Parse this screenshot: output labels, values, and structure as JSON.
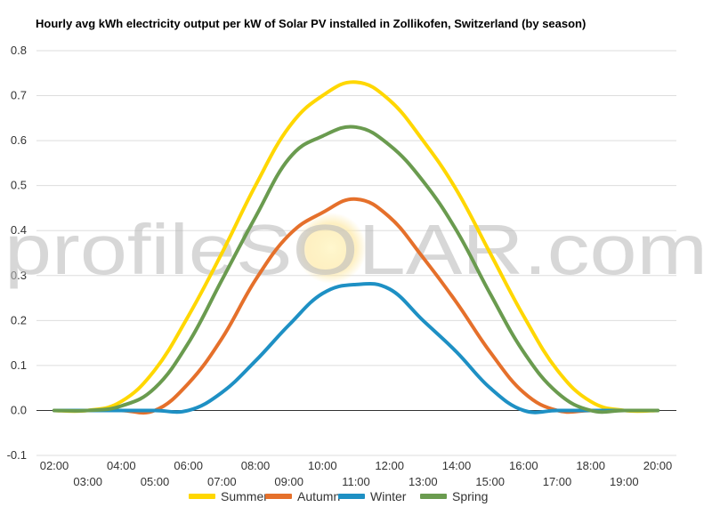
{
  "chart_data": {
    "type": "line",
    "title": "Hourly avg kWh electricity output per kW of Solar PV installed in Zollikofen, Switzerland (by season)",
    "xlabel": "",
    "ylabel": "",
    "ylim": [
      -0.1,
      0.8
    ],
    "yticks": [
      "-0.1",
      "0.0",
      "0.1",
      "0.2",
      "0.3",
      "0.4",
      "0.5",
      "0.6",
      "0.7",
      "0.8"
    ],
    "categories": [
      "02:00",
      "03:00",
      "04:00",
      "05:00",
      "06:00",
      "07:00",
      "08:00",
      "09:00",
      "10:00",
      "11:00",
      "12:00",
      "13:00",
      "14:00",
      "15:00",
      "16:00",
      "17:00",
      "18:00",
      "19:00",
      "20:00"
    ],
    "grid": true,
    "legend": "bottom",
    "series": [
      {
        "name": "Summer",
        "color": "#ffd700",
        "values": [
          0.0,
          0.0,
          0.02,
          0.09,
          0.21,
          0.35,
          0.5,
          0.63,
          0.7,
          0.73,
          0.69,
          0.6,
          0.49,
          0.35,
          0.21,
          0.09,
          0.02,
          0.0,
          0.0
        ]
      },
      {
        "name": "Autumn",
        "color": "#e5702b",
        "values": [
          0.0,
          0.0,
          0.0,
          0.0,
          0.06,
          0.16,
          0.29,
          0.39,
          0.44,
          0.47,
          0.43,
          0.34,
          0.24,
          0.13,
          0.04,
          0.0,
          0.0,
          0.0,
          0.0
        ]
      },
      {
        "name": "Winter",
        "color": "#1e90c4",
        "values": [
          0.0,
          0.0,
          0.0,
          0.0,
          0.0,
          0.04,
          0.11,
          0.19,
          0.26,
          0.28,
          0.27,
          0.2,
          0.13,
          0.05,
          0.0,
          0.0,
          0.0,
          0.0,
          0.0
        ]
      },
      {
        "name": "Spring",
        "color": "#6a9b4f",
        "values": [
          0.0,
          0.0,
          0.01,
          0.05,
          0.15,
          0.29,
          0.43,
          0.56,
          0.61,
          0.63,
          0.59,
          0.51,
          0.4,
          0.26,
          0.13,
          0.04,
          0.0,
          0.0,
          0.0
        ]
      }
    ],
    "watermark": "profileSOLAR.com"
  }
}
